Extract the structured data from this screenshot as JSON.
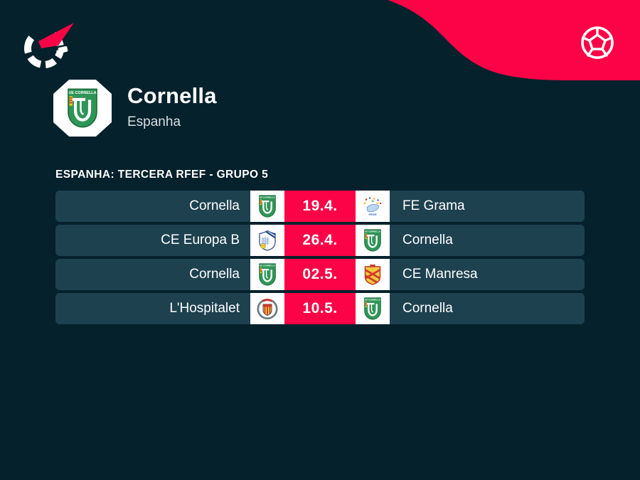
{
  "colors": {
    "page_bg": "#04212c",
    "row_bg": "#1e4150",
    "accent": "#fb0346",
    "badge_frame": "#ffffff",
    "muted_text": "#d9dfe2"
  },
  "icons": {
    "brand": "flashscore-spinner-logo",
    "sport": "football-ball-icon"
  },
  "club": {
    "name": "Cornella",
    "country": "Espanha",
    "badge": "cornella"
  },
  "section": {
    "label": "ESPANHA: TERCERA RFEF - GRUPO 5"
  },
  "fixtures": [
    {
      "home": "Cornella",
      "home_badge": "cornella",
      "date": "19.4.",
      "away_badge": "grama",
      "away": "FE Grama"
    },
    {
      "home": "CE Europa B",
      "home_badge": "europa",
      "date": "26.4.",
      "away_badge": "cornella",
      "away": "Cornella"
    },
    {
      "home": "Cornella",
      "home_badge": "cornella",
      "date": "02.5.",
      "away_badge": "manresa",
      "away": "CE Manresa"
    },
    {
      "home": "L'Hospitalet",
      "home_badge": "hospitalet",
      "date": "10.5.",
      "away_badge": "cornella",
      "away": "Cornella"
    }
  ]
}
